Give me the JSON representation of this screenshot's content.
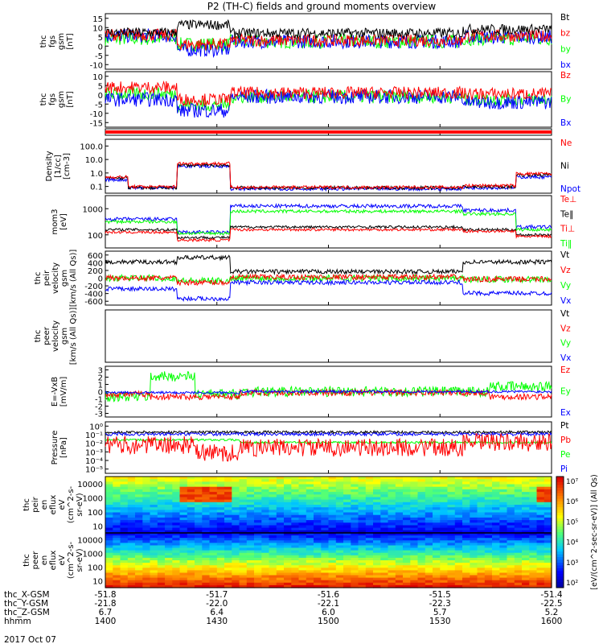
{
  "title": "P2 (TH-C) fields and ground moments overview",
  "date": "2017 Oct 07",
  "colors": {
    "black": "#000000",
    "red": "#ff0000",
    "green": "#00ff00",
    "blue": "#0000ff"
  },
  "panels": [
    {
      "ylabel": [
        "thc",
        "fgs",
        "gsm",
        "[nT]"
      ],
      "ticks": [
        "15",
        "10",
        "5",
        "0",
        "-5",
        "-10"
      ],
      "legend": [
        [
          "Bt",
          "black"
        ],
        [
          "bz",
          "red"
        ],
        [
          "by",
          "green"
        ],
        [
          "bx",
          "blue"
        ]
      ]
    },
    {
      "ylabel": [
        "thc",
        "fgs",
        "gsm",
        "[nT]"
      ],
      "ticks": [
        "10",
        "5",
        "0",
        "-5",
        "-10",
        "-15"
      ],
      "legend": [
        [
          "Bz",
          "red"
        ],
        [
          "By",
          "green"
        ],
        [
          "Bx",
          "blue"
        ]
      ]
    },
    {
      "ylabel": [],
      "ticks": [],
      "legend": []
    },
    {
      "ylabel": [
        "Density",
        "[1/cc]",
        "[cm-3]"
      ],
      "ticks": [
        "100.0",
        "10.0",
        "1.0",
        "0.1"
      ],
      "legend": [
        [
          "Ne",
          "red"
        ],
        [
          "Ni",
          "black"
        ],
        [
          "Npot",
          "blue"
        ]
      ]
    },
    {
      "ylabel": [
        "mom3",
        "[eV]"
      ],
      "ticks": [
        "1000",
        "100"
      ],
      "legend": [
        [
          "Te⊥",
          "red"
        ],
        [
          "Te‖",
          "black"
        ],
        [
          "Ti⊥",
          "red"
        ],
        [
          "Ti‖",
          "green"
        ]
      ]
    },
    {
      "ylabel": [
        "thc",
        "peir",
        "velocity",
        "gsm",
        "[km/s (All Qs)]"
      ],
      "ticks": [
        "600",
        "400",
        "200",
        "0",
        "-200",
        "-400",
        "-600"
      ],
      "legend": [
        [
          "Vt",
          "black"
        ],
        [
          "Vz",
          "red"
        ],
        [
          "Vy",
          "green"
        ],
        [
          "Vx",
          "blue"
        ]
      ]
    },
    {
      "ylabel": [
        "thc",
        "peer",
        "velocity",
        "gsm",
        "[km/s (All Qs)]"
      ],
      "ticks": [],
      "legend": [
        [
          "Vt",
          "black"
        ],
        [
          "Vz",
          "red"
        ],
        [
          "Vy",
          "green"
        ],
        [
          "Vx",
          "blue"
        ]
      ]
    },
    {
      "ylabel": [
        "E=-VxB",
        "[mV/m]"
      ],
      "ticks": [
        "3",
        "2",
        "1",
        "0",
        "-1",
        "-2",
        "-3"
      ],
      "legend": [
        [
          "Ez",
          "red"
        ],
        [
          "Ey",
          "green"
        ],
        [
          "Ex",
          "blue"
        ]
      ]
    },
    {
      "ylabel": [
        "Pressure",
        "[nPa]"
      ],
      "ticks": [
        "10⁰",
        "10⁻¹",
        "10⁻²",
        "10⁻³",
        "10⁻⁴",
        "10⁻⁵"
      ],
      "legend": [
        [
          "Pt",
          "black"
        ],
        [
          "Pb",
          "red"
        ],
        [
          "Pe",
          "green"
        ],
        [
          "Pi",
          "blue"
        ]
      ]
    },
    {
      "ylabel": [
        "thc",
        "peir",
        "en",
        "eflux",
        "eV",
        "(cm^2-s-",
        "sr-eV)"
      ],
      "ticks": [
        "10000",
        "1000",
        "100",
        "10"
      ],
      "legend": []
    },
    {
      "ylabel": [
        "thc",
        "peer",
        "en",
        "eflux",
        "eV",
        "(cm^2-s-",
        "sr-eV)"
      ],
      "ticks": [
        "10000",
        "1000",
        "100",
        "10"
      ],
      "legend": []
    }
  ],
  "colorbar": {
    "ticks": [
      "10⁷",
      "10⁶",
      "10⁵",
      "10⁴",
      "10³",
      "10²"
    ],
    "label": "[eV/(cm^2-sec-sr-eV)] (All Qs)"
  },
  "footer": {
    "labels": [
      "thc_X-GSM",
      "thc_Y-GSM",
      "thc_Z-GSM",
      "hhmm"
    ],
    "columns": [
      [
        "-51.8",
        "-21.8",
        "6.7",
        "1400"
      ],
      [
        "-51.7",
        "-22.0",
        "6.4",
        "1430"
      ],
      [
        "-51.6",
        "-22.1",
        "6.0",
        "1500"
      ],
      [
        "-51.5",
        "-22.3",
        "5.7",
        "1530"
      ],
      [
        "-51.4",
        "-22.5",
        "5.2",
        "1600"
      ]
    ]
  }
}
